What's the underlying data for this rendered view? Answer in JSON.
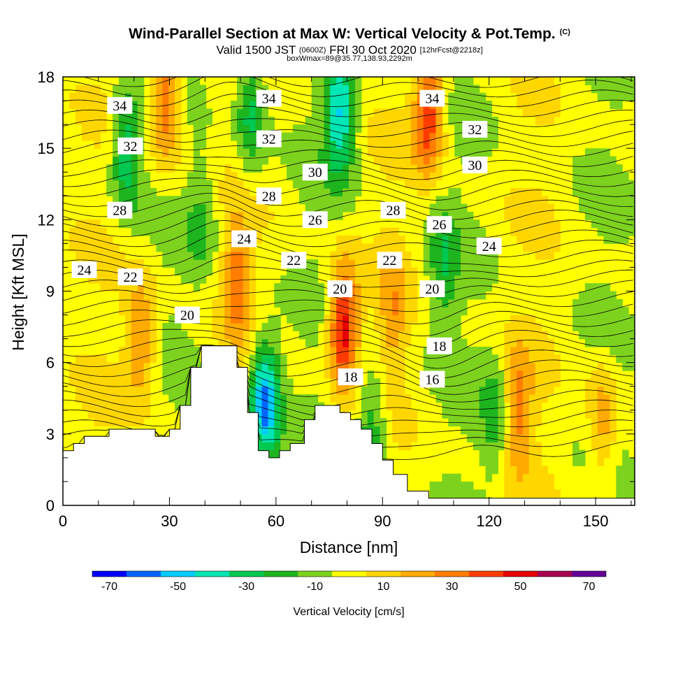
{
  "header": {
    "title": "Wind-Parallel Section at Max W: Vertical Velocity & Pot.Temp.",
    "copyright": "(C)",
    "valid_prefix": "Valid 1500 JST",
    "valid_utc": "(0600Z)",
    "valid_date": "FRI 30 Oct 2020",
    "forecast": "[12hrFcst@2218z]",
    "box_info": "boxWmax=89@35.77,138.93,2292m"
  },
  "chart_data": {
    "type": "heatmap",
    "title": "Wind-Parallel Section at Max W: Vertical Velocity & Pot.Temp.",
    "xlabel": "Distance [nm]",
    "ylabel": "Height [Kft MSL]",
    "xlim": [
      0,
      161
    ],
    "ylim": [
      0,
      18
    ],
    "x_ticks": [
      0,
      30,
      60,
      90,
      120,
      150
    ],
    "y_ticks": [
      0,
      3,
      6,
      9,
      12,
      15,
      18
    ],
    "colorbar": {
      "label": "Vertical Velocity [cm/s]",
      "boundaries": [
        -75,
        -65,
        -55,
        -45,
        -35,
        -25,
        -15,
        -5,
        5,
        15,
        25,
        35,
        45,
        55,
        65,
        75
      ],
      "tick_values": [
        -70,
        -50,
        -30,
        -10,
        10,
        30,
        50,
        70
      ],
      "tick_labels": [
        "-70",
        "-50",
        "-30",
        "-10",
        "10",
        "30",
        "50",
        "70"
      ],
      "colors": [
        "#0000ff",
        "#0066ff",
        "#00ccff",
        "#00e6b4",
        "#00c850",
        "#1eb41e",
        "#7dd21e",
        "#ffff00",
        "#ffd700",
        "#ffaa00",
        "#ff7d00",
        "#ff3c00",
        "#e60000",
        "#aa0050",
        "#640096"
      ]
    },
    "terrain_kft": [
      [
        0,
        2.3
      ],
      [
        3,
        2.3
      ],
      [
        3,
        2.6
      ],
      [
        6,
        2.6
      ],
      [
        6,
        2.9
      ],
      [
        13,
        2.9
      ],
      [
        13,
        3.2
      ],
      [
        26,
        3.2
      ],
      [
        26,
        2.9
      ],
      [
        30,
        2.9
      ],
      [
        30,
        3.2
      ],
      [
        33,
        3.2
      ],
      [
        33,
        4.2
      ],
      [
        36,
        4.2
      ],
      [
        36,
        5.8
      ],
      [
        39,
        5.8
      ],
      [
        39,
        6.7
      ],
      [
        49,
        6.7
      ],
      [
        49,
        5.8
      ],
      [
        52,
        5.8
      ],
      [
        52,
        3.9
      ],
      [
        55,
        3.9
      ],
      [
        55,
        2.3
      ],
      [
        58,
        2.3
      ],
      [
        58,
        2.0
      ],
      [
        61,
        2.0
      ],
      [
        61,
        2.3
      ],
      [
        64,
        2.3
      ],
      [
        64,
        2.6
      ],
      [
        68,
        2.6
      ],
      [
        68,
        3.6
      ],
      [
        71,
        3.6
      ],
      [
        71,
        4.2
      ],
      [
        78,
        4.2
      ],
      [
        78,
        3.9
      ],
      [
        81,
        3.9
      ],
      [
        81,
        3.6
      ],
      [
        84,
        3.6
      ],
      [
        84,
        3.2
      ],
      [
        87,
        3.2
      ],
      [
        87,
        2.6
      ],
      [
        90,
        2.6
      ],
      [
        90,
        1.9
      ],
      [
        93,
        1.9
      ],
      [
        93,
        1.3
      ],
      [
        97,
        1.3
      ],
      [
        97,
        0.6
      ],
      [
        103,
        0.6
      ],
      [
        103,
        0.3
      ],
      [
        161,
        0.3
      ]
    ],
    "updraft_cores": [
      {
        "x": 22,
        "y": 7.0,
        "w": 30
      },
      {
        "x": 29,
        "y": 17.0,
        "w": 40
      },
      {
        "x": 49,
        "y": 9.5,
        "w": 30
      },
      {
        "x": 79,
        "y": 7.5,
        "w": 55
      },
      {
        "x": 93,
        "y": 8.0,
        "w": 20
      },
      {
        "x": 103,
        "y": 16.5,
        "w": 45
      },
      {
        "x": 128,
        "y": 4.0,
        "w": 30
      },
      {
        "x": 152,
        "y": 3.5,
        "w": 25
      }
    ],
    "downdraft_cores": [
      {
        "x": 57,
        "y": 4.3,
        "w": -60
      },
      {
        "x": 78,
        "y": 16.5,
        "w": -45
      },
      {
        "x": 18,
        "y": 15.0,
        "w": -35
      },
      {
        "x": 53,
        "y": 16.5,
        "w": -30
      },
      {
        "x": 87,
        "y": 3.3,
        "w": -25
      },
      {
        "x": 107,
        "y": 10.0,
        "w": -20
      },
      {
        "x": 122,
        "y": 3.8,
        "w": -20
      },
      {
        "x": 39,
        "y": 12.0,
        "w": -15
      }
    ],
    "theta_levels": [
      16,
      18,
      20,
      22,
      24,
      26,
      28,
      30,
      32,
      34
    ],
    "theta_labels": [
      {
        "text": "34",
        "x": 16,
        "y": 16.8
      },
      {
        "text": "34",
        "x": 58,
        "y": 17.1
      },
      {
        "text": "34",
        "x": 104,
        "y": 17.1
      },
      {
        "text": "32",
        "x": 19,
        "y": 15.1
      },
      {
        "text": "32",
        "x": 58,
        "y": 15.4
      },
      {
        "text": "32",
        "x": 116,
        "y": 15.8
      },
      {
        "text": "30",
        "x": 71,
        "y": 14.0
      },
      {
        "text": "30",
        "x": 116,
        "y": 14.3
      },
      {
        "text": "28",
        "x": 16,
        "y": 12.4
      },
      {
        "text": "28",
        "x": 58,
        "y": 13.0
      },
      {
        "text": "28",
        "x": 93,
        "y": 12.4
      },
      {
        "text": "26",
        "x": 71,
        "y": 12.0
      },
      {
        "text": "26",
        "x": 106,
        "y": 11.8
      },
      {
        "text": "24",
        "x": 6,
        "y": 9.9
      },
      {
        "text": "24",
        "x": 51,
        "y": 11.2
      },
      {
        "text": "24",
        "x": 120,
        "y": 10.9
      },
      {
        "text": "22",
        "x": 19,
        "y": 9.6
      },
      {
        "text": "22",
        "x": 65,
        "y": 10.3
      },
      {
        "text": "22",
        "x": 92,
        "y": 10.3
      },
      {
        "text": "20",
        "x": 35,
        "y": 8.0
      },
      {
        "text": "20",
        "x": 78,
        "y": 9.1
      },
      {
        "text": "20",
        "x": 104,
        "y": 9.1
      },
      {
        "text": "18",
        "x": 106,
        "y": 6.7
      },
      {
        "text": "18",
        "x": 81,
        "y": 5.4
      },
      {
        "text": "16",
        "x": 104,
        "y": 5.3
      }
    ]
  }
}
